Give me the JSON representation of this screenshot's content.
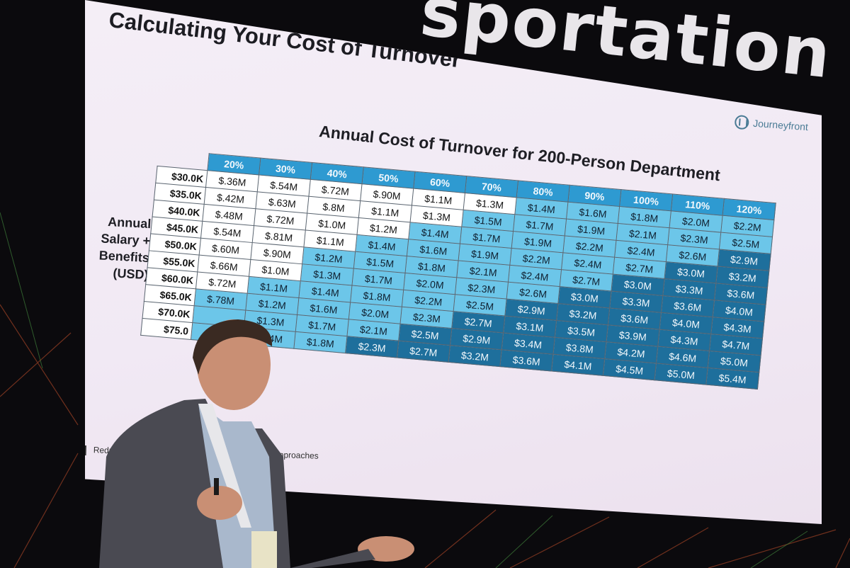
{
  "banner": {
    "text": "sportation Th"
  },
  "slide": {
    "title": "Calculating Your Cost of Turnover",
    "logo_text": "Journeyfront",
    "logo_icon": "journeyfront-logo-icon",
    "footer_left": "Reducin",
    "footer_right": "s & Approaches"
  },
  "chart": {
    "title": "Annual Cost of Turnover for 200-Person Department",
    "x_label": "Annual Turnover %",
    "y_label_lines": [
      "Annual",
      "Salary +",
      "Benefits",
      "(USD)"
    ]
  },
  "colors": {
    "white_cell": "#ffffff",
    "light_cell": "#6cc6e9",
    "mid_cell": "#2f97cc",
    "dark_cell": "#1e6f9c",
    "header": "#2e9ad1"
  },
  "chart_data": {
    "type": "table",
    "title": "Annual Cost of Turnover for 200-Person Department",
    "columns_label": "Annual Turnover %",
    "rows_label": "Annual Salary + Benefits (USD)",
    "columns": [
      "20%",
      "30%",
      "40%",
      "50%",
      "60%",
      "70%",
      "80%",
      "90%",
      "100%",
      "110%",
      "120%"
    ],
    "rows": [
      {
        "label": "$30.0K",
        "values": [
          "$.36M",
          "$.54M",
          "$.72M",
          "$.90M",
          "$1.1M",
          "$1.3M",
          "$1.4M",
          "$1.6M",
          "$1.8M",
          "$2.0M",
          "$2.2M"
        ],
        "shade": [
          0,
          0,
          0,
          0,
          0,
          0,
          1,
          1,
          1,
          1,
          1
        ]
      },
      {
        "label": "$35.0K",
        "values": [
          "$.42M",
          "$.63M",
          "$.8M",
          "$1.1M",
          "$1.3M",
          "$1.5M",
          "$1.7M",
          "$1.9M",
          "$2.1M",
          "$2.3M",
          "$2.5M"
        ],
        "shade": [
          0,
          0,
          0,
          0,
          0,
          1,
          1,
          1,
          1,
          1,
          1
        ]
      },
      {
        "label": "$40.0K",
        "values": [
          "$.48M",
          "$.72M",
          "$1.0M",
          "$1.2M",
          "$1.4M",
          "$1.7M",
          "$1.9M",
          "$2.2M",
          "$2.4M",
          "$2.6M",
          "$2.9M"
        ],
        "shade": [
          0,
          0,
          0,
          0,
          1,
          1,
          1,
          1,
          1,
          1,
          3
        ]
      },
      {
        "label": "$45.0K",
        "values": [
          "$.54M",
          "$.81M",
          "$1.1M",
          "$1.4M",
          "$1.6M",
          "$1.9M",
          "$2.2M",
          "$2.4M",
          "$2.7M",
          "$3.0M",
          "$3.2M"
        ],
        "shade": [
          0,
          0,
          0,
          1,
          1,
          1,
          1,
          1,
          1,
          3,
          3
        ]
      },
      {
        "label": "$50.0K",
        "values": [
          "$.60M",
          "$.90M",
          "$1.2M",
          "$1.5M",
          "$1.8M",
          "$2.1M",
          "$2.4M",
          "$2.7M",
          "$3.0M",
          "$3.3M",
          "$3.6M"
        ],
        "shade": [
          0,
          0,
          1,
          1,
          1,
          1,
          1,
          1,
          3,
          3,
          3
        ]
      },
      {
        "label": "$55.0K",
        "values": [
          "$.66M",
          "$1.0M",
          "$1.3M",
          "$1.7M",
          "$2.0M",
          "$2.3M",
          "$2.6M",
          "$3.0M",
          "$3.3M",
          "$3.6M",
          "$4.0M"
        ],
        "shade": [
          0,
          0,
          1,
          1,
          1,
          1,
          1,
          3,
          3,
          3,
          3
        ]
      },
      {
        "label": "$60.0K",
        "values": [
          "$.72M",
          "$1.1M",
          "$1.4M",
          "$1.8M",
          "$2.2M",
          "$2.5M",
          "$2.9M",
          "$3.2M",
          "$3.6M",
          "$4.0M",
          "$4.3M"
        ],
        "shade": [
          0,
          1,
          1,
          1,
          1,
          1,
          3,
          3,
          3,
          3,
          3
        ]
      },
      {
        "label": "$65.0K",
        "values": [
          "$.78M",
          "$1.2M",
          "$1.6M",
          "$2.0M",
          "$2.3M",
          "$2.7M",
          "$3.1M",
          "$3.5M",
          "$3.9M",
          "$4.3M",
          "$4.7M"
        ],
        "shade": [
          1,
          1,
          1,
          1,
          1,
          3,
          3,
          3,
          3,
          3,
          3
        ]
      },
      {
        "label": "$70.0K",
        "values": [
          "",
          "$1.3M",
          "$1.7M",
          "$2.1M",
          "$2.5M",
          "$2.9M",
          "$3.4M",
          "$3.8M",
          "$4.2M",
          "$4.6M",
          "$5.0M"
        ],
        "shade": [
          1,
          1,
          1,
          1,
          3,
          3,
          3,
          3,
          3,
          3,
          3
        ]
      },
      {
        "label": "$75.0",
        "values": [
          "",
          "$1.4M",
          "$1.8M",
          "$2.3M",
          "$2.7M",
          "$3.2M",
          "$3.6M",
          "$4.1M",
          "$4.5M",
          "$5.0M",
          "$5.4M"
        ],
        "shade": [
          1,
          1,
          1,
          3,
          3,
          3,
          3,
          3,
          3,
          3,
          3
        ]
      }
    ]
  }
}
